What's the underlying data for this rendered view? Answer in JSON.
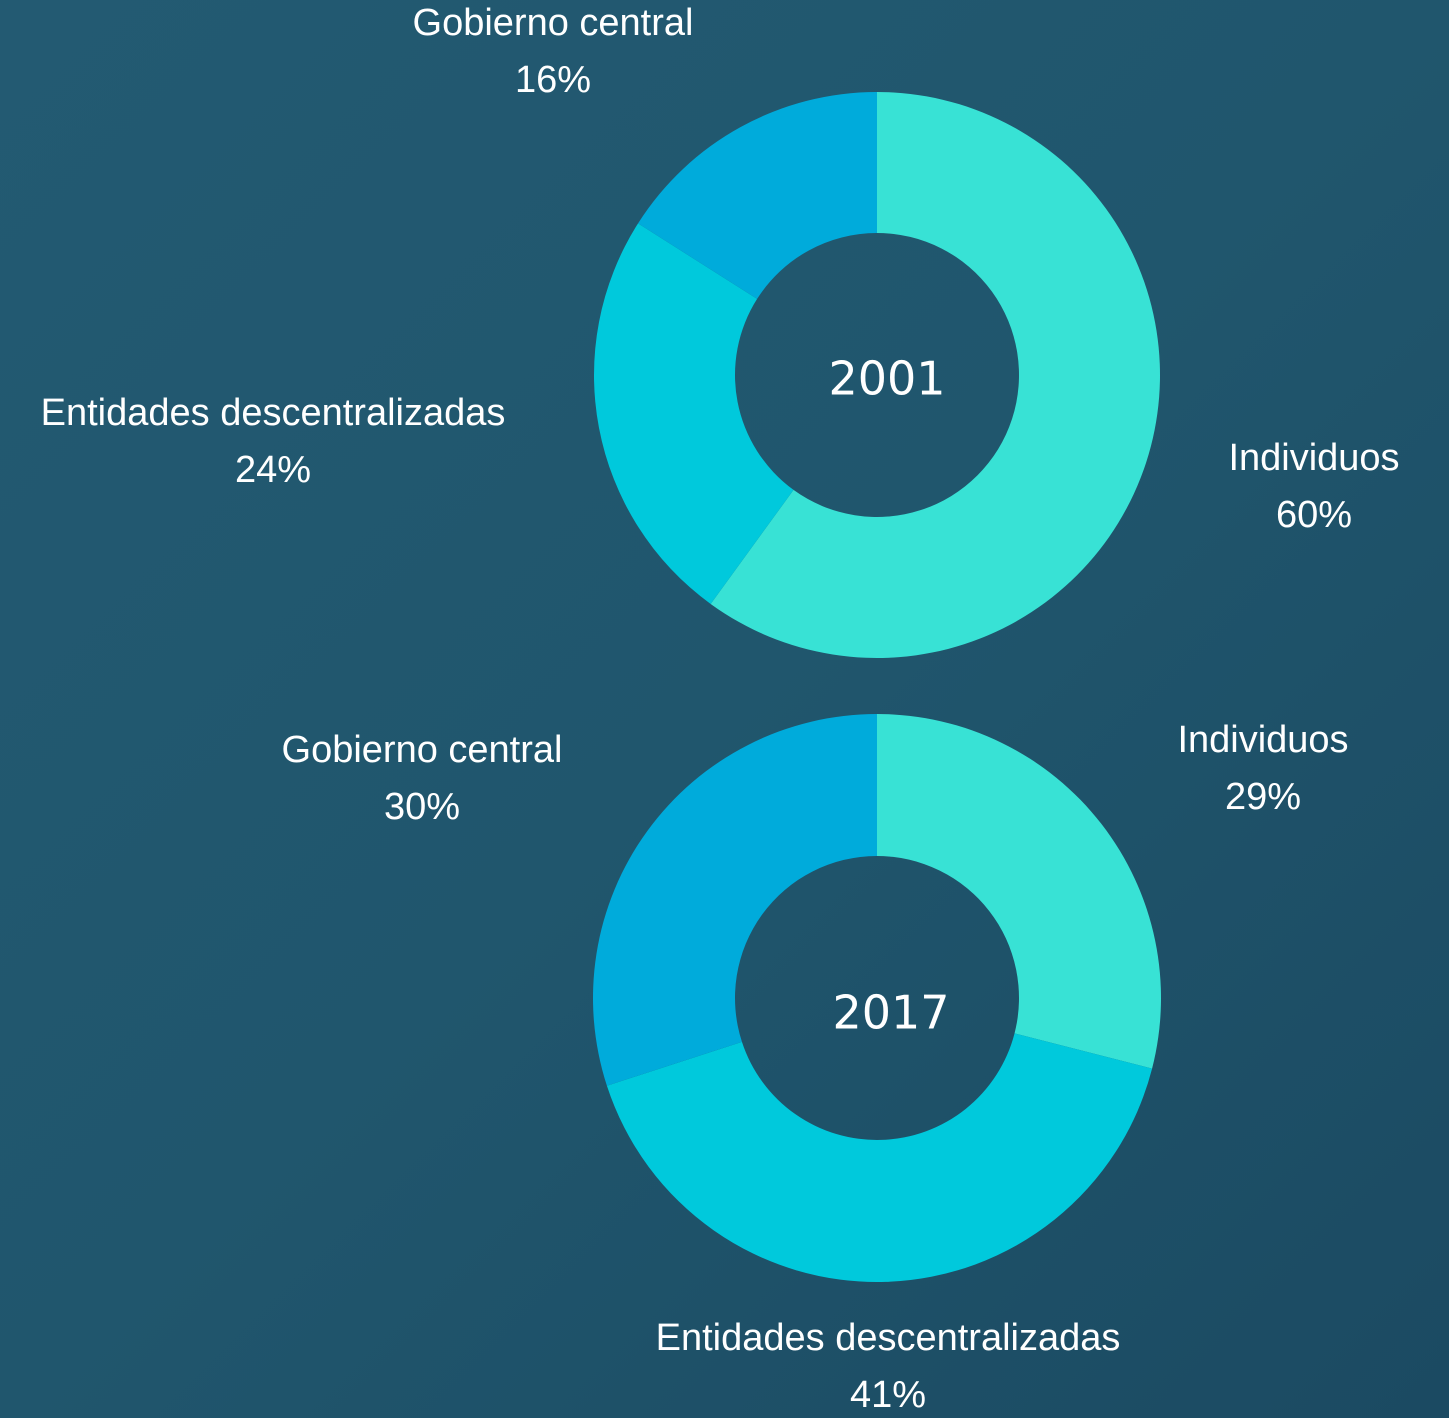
{
  "chart_data": [
    {
      "type": "donut",
      "title": "2001",
      "categories": [
        "Individuos",
        "Entidades descentralizadas",
        "Gobierno central"
      ],
      "values": [
        60,
        24,
        16
      ],
      "value_labels": [
        "60%",
        "24%",
        "16%"
      ],
      "colors": [
        "#38e2d5",
        "#00c9dc",
        "#00abdb"
      ]
    },
    {
      "type": "donut",
      "title": "2017",
      "categories": [
        "Individuos",
        "Entidades descentralizadas",
        "Gobierno central"
      ],
      "values": [
        29,
        41,
        30
      ],
      "value_labels": [
        "29%",
        "41%",
        "30%"
      ],
      "colors": [
        "#38e2d5",
        "#00c9dc",
        "#00abdb"
      ]
    }
  ]
}
